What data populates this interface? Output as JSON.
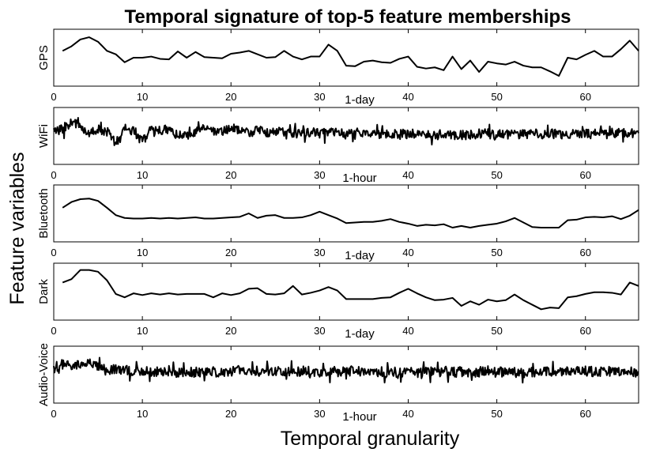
{
  "title": "Temporal signature of top-5 feature memberships",
  "ylabel": "Feature variables",
  "xlabel": "Temporal granularity",
  "chart_data": [
    {
      "type": "line",
      "ylabel": "GPS",
      "xlabel": "1-day",
      "xlim": [
        0,
        66
      ],
      "xticks": [
        0,
        10,
        20,
        30,
        40,
        50,
        60
      ],
      "ylim": [
        0,
        1
      ],
      "x": [
        1,
        2,
        3,
        4,
        5,
        6,
        7,
        8,
        9,
        10,
        11,
        12,
        13,
        14,
        15,
        16,
        17,
        18,
        19,
        20,
        21,
        22,
        23,
        24,
        25,
        26,
        27,
        28,
        29,
        30,
        31,
        32,
        33,
        34,
        35,
        36,
        37,
        38,
        39,
        40,
        41,
        42,
        43,
        44,
        45,
        46,
        47,
        48,
        49,
        50,
        51,
        52,
        53,
        54,
        55,
        56,
        57,
        58,
        59,
        60,
        61,
        62,
        63,
        64,
        65,
        66
      ],
      "values": [
        0.62,
        0.7,
        0.82,
        0.86,
        0.78,
        0.62,
        0.56,
        0.42,
        0.5,
        0.5,
        0.52,
        0.48,
        0.47,
        0.61,
        0.5,
        0.6,
        0.51,
        0.5,
        0.49,
        0.57,
        0.59,
        0.62,
        0.56,
        0.5,
        0.51,
        0.62,
        0.52,
        0.47,
        0.52,
        0.52,
        0.73,
        0.62,
        0.36,
        0.35,
        0.43,
        0.45,
        0.42,
        0.41,
        0.48,
        0.52,
        0.34,
        0.31,
        0.33,
        0.28,
        0.52,
        0.3,
        0.45,
        0.25,
        0.43,
        0.4,
        0.38,
        0.43,
        0.36,
        0.33,
        0.33,
        0.26,
        0.18,
        0.5,
        0.47,
        0.55,
        0.62,
        0.52,
        0.52,
        0.65,
        0.8,
        0.62
      ],
      "color": "#000000"
    },
    {
      "type": "line",
      "ylabel": "WiFi",
      "xlabel": "1-hour",
      "xlim": [
        0,
        66
      ],
      "xticks": [
        0,
        10,
        20,
        30,
        40,
        50,
        60
      ],
      "ylim": [
        0,
        1
      ],
      "x": [
        0,
        1,
        2,
        3,
        4,
        5,
        6,
        7,
        8,
        9,
        10,
        11,
        12,
        13,
        14,
        15,
        16,
        17,
        18,
        19,
        20,
        21,
        22,
        23,
        24,
        25,
        26,
        27,
        28,
        29,
        30,
        31,
        32,
        33,
        34,
        35,
        36,
        37,
        38,
        39,
        40,
        41,
        42,
        43,
        44,
        45,
        46,
        47,
        48,
        49,
        50,
        51,
        52,
        53,
        54,
        55,
        56,
        57,
        58,
        59,
        60,
        61,
        62,
        63,
        64,
        65,
        66
      ],
      "values": [
        0.58,
        0.62,
        0.74,
        0.68,
        0.55,
        0.62,
        0.58,
        0.36,
        0.62,
        0.6,
        0.4,
        0.62,
        0.58,
        0.62,
        0.52,
        0.48,
        0.57,
        0.6,
        0.58,
        0.58,
        0.65,
        0.57,
        0.56,
        0.6,
        0.56,
        0.58,
        0.56,
        0.55,
        0.54,
        0.57,
        0.54,
        0.56,
        0.56,
        0.52,
        0.57,
        0.53,
        0.55,
        0.54,
        0.52,
        0.54,
        0.52,
        0.55,
        0.54,
        0.5,
        0.55,
        0.52,
        0.52,
        0.52,
        0.54,
        0.54,
        0.52,
        0.53,
        0.54,
        0.52,
        0.55,
        0.52,
        0.54,
        0.53,
        0.52,
        0.54,
        0.53,
        0.54,
        0.52,
        0.56,
        0.55,
        0.54,
        0.55
      ],
      "noise_amplitude": 0.17,
      "color": "#000000"
    },
    {
      "type": "line",
      "ylabel": "Bluetooth",
      "xlabel": "1-day",
      "xlim": [
        0,
        66
      ],
      "xticks": [
        0,
        10,
        20,
        30,
        40,
        50,
        60
      ],
      "ylim": [
        0,
        1
      ],
      "x": [
        1,
        2,
        3,
        4,
        5,
        6,
        7,
        8,
        9,
        10,
        11,
        12,
        13,
        14,
        15,
        16,
        17,
        18,
        19,
        20,
        21,
        22,
        23,
        24,
        25,
        26,
        27,
        28,
        29,
        30,
        31,
        32,
        33,
        34,
        35,
        36,
        37,
        38,
        39,
        40,
        41,
        42,
        43,
        44,
        45,
        46,
        47,
        48,
        49,
        50,
        51,
        52,
        53,
        54,
        55,
        56,
        57,
        58,
        59,
        60,
        61,
        62,
        63,
        64,
        65,
        66
      ],
      "values": [
        0.6,
        0.7,
        0.75,
        0.76,
        0.72,
        0.6,
        0.47,
        0.42,
        0.41,
        0.41,
        0.42,
        0.41,
        0.42,
        0.41,
        0.42,
        0.43,
        0.41,
        0.41,
        0.42,
        0.43,
        0.44,
        0.5,
        0.42,
        0.46,
        0.47,
        0.42,
        0.42,
        0.43,
        0.47,
        0.53,
        0.47,
        0.41,
        0.33,
        0.34,
        0.35,
        0.35,
        0.37,
        0.4,
        0.35,
        0.32,
        0.28,
        0.3,
        0.29,
        0.31,
        0.25,
        0.28,
        0.25,
        0.28,
        0.3,
        0.32,
        0.36,
        0.42,
        0.34,
        0.26,
        0.25,
        0.25,
        0.25,
        0.38,
        0.39,
        0.43,
        0.44,
        0.43,
        0.45,
        0.4,
        0.46,
        0.56
      ],
      "color": "#000000"
    },
    {
      "type": "line",
      "ylabel": "Dark",
      "xlabel": "1-day",
      "xlim": [
        0,
        66
      ],
      "xticks": [
        0,
        10,
        20,
        30,
        40,
        50,
        60
      ],
      "ylim": [
        0,
        1
      ],
      "x": [
        1,
        2,
        3,
        4,
        5,
        6,
        7,
        8,
        9,
        10,
        11,
        12,
        13,
        14,
        15,
        16,
        17,
        18,
        19,
        20,
        21,
        22,
        23,
        24,
        25,
        26,
        27,
        28,
        29,
        30,
        31,
        32,
        33,
        34,
        35,
        36,
        37,
        38,
        39,
        40,
        41,
        42,
        43,
        44,
        45,
        46,
        47,
        48,
        49,
        50,
        51,
        52,
        53,
        54,
        55,
        56,
        57,
        58,
        59,
        60,
        61,
        62,
        63,
        64,
        65,
        66
      ],
      "values": [
        0.66,
        0.72,
        0.88,
        0.88,
        0.85,
        0.7,
        0.46,
        0.4,
        0.47,
        0.44,
        0.47,
        0.45,
        0.47,
        0.45,
        0.46,
        0.46,
        0.46,
        0.4,
        0.47,
        0.44,
        0.47,
        0.55,
        0.56,
        0.46,
        0.45,
        0.47,
        0.6,
        0.45,
        0.48,
        0.52,
        0.58,
        0.52,
        0.37,
        0.37,
        0.37,
        0.37,
        0.39,
        0.4,
        0.48,
        0.55,
        0.47,
        0.4,
        0.35,
        0.36,
        0.39,
        0.25,
        0.33,
        0.27,
        0.36,
        0.33,
        0.35,
        0.45,
        0.35,
        0.27,
        0.19,
        0.22,
        0.21,
        0.4,
        0.42,
        0.46,
        0.49,
        0.49,
        0.48,
        0.45,
        0.66,
        0.6
      ],
      "color": "#000000"
    },
    {
      "type": "line",
      "ylabel": "Audio-Voice",
      "xlabel": "1-hour",
      "xlim": [
        0,
        66
      ],
      "xticks": [
        0,
        10,
        20,
        30,
        40,
        50,
        60
      ],
      "ylim": [
        0,
        1
      ],
      "x": [
        0,
        1,
        2,
        3,
        4,
        5,
        6,
        7,
        8,
        9,
        10,
        11,
        12,
        13,
        14,
        15,
        16,
        17,
        18,
        19,
        20,
        21,
        22,
        23,
        24,
        25,
        26,
        27,
        28,
        29,
        30,
        31,
        32,
        33,
        34,
        35,
        36,
        37,
        38,
        39,
        40,
        41,
        42,
        43,
        44,
        45,
        46,
        47,
        48,
        49,
        50,
        51,
        52,
        53,
        54,
        55,
        56,
        57,
        58,
        59,
        60,
        61,
        62,
        63,
        64,
        65,
        66
      ],
      "values": [
        0.62,
        0.68,
        0.64,
        0.66,
        0.7,
        0.62,
        0.57,
        0.6,
        0.6,
        0.55,
        0.58,
        0.56,
        0.55,
        0.55,
        0.54,
        0.52,
        0.55,
        0.54,
        0.55,
        0.55,
        0.56,
        0.57,
        0.55,
        0.56,
        0.55,
        0.55,
        0.57,
        0.55,
        0.55,
        0.56,
        0.55,
        0.56,
        0.55,
        0.55,
        0.56,
        0.55,
        0.54,
        0.55,
        0.53,
        0.55,
        0.55,
        0.54,
        0.55,
        0.54,
        0.55,
        0.54,
        0.55,
        0.54,
        0.55,
        0.54,
        0.55,
        0.55,
        0.54,
        0.53,
        0.55,
        0.54,
        0.55,
        0.55,
        0.56,
        0.56,
        0.56,
        0.55,
        0.56,
        0.56,
        0.55,
        0.55,
        0.55
      ],
      "noise_amplitude": 0.18,
      "color": "#000000"
    }
  ]
}
